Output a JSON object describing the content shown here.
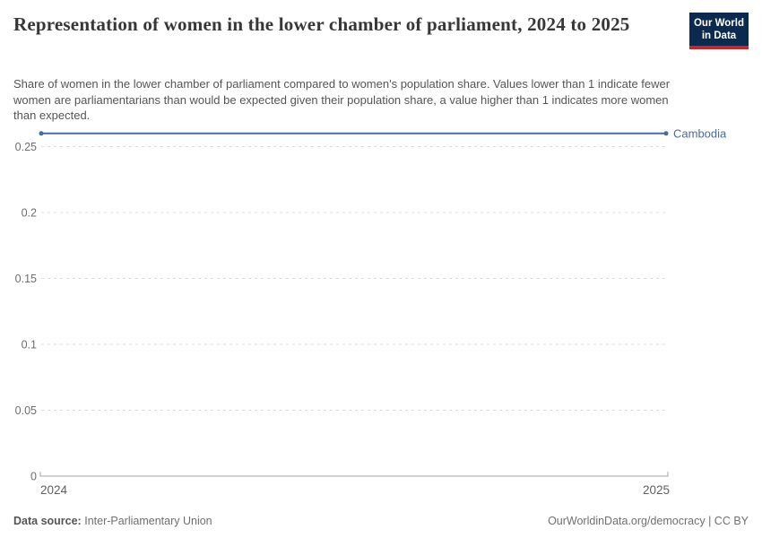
{
  "header": {
    "title": "Representation of women in the lower chamber of parliament, 2024 to 2025",
    "subtitle": "Share of women in the lower chamber of parliament compared to women's population share. Values lower than 1 indicate fewer women are parliamentarians than would be expected given their population share, a value higher than 1 indicates more women than expected."
  },
  "logo": {
    "line1": "Our World",
    "line2": "in Data",
    "bg_color": "#0c2a50",
    "accent_color": "#c1272d"
  },
  "chart_data": {
    "type": "line",
    "title": "Representation of women in the lower chamber of parliament, 2024 to 2025",
    "xlim": [
      2024,
      2025
    ],
    "x_tick_labels": [
      "2024",
      "2025"
    ],
    "y_ticks": [
      0,
      0.05,
      0.1,
      0.15,
      0.2,
      0.25
    ],
    "y_tick_labels": [
      "0",
      "0.05",
      "0.1",
      "0.15",
      "0.2",
      "0.25"
    ],
    "ylim": [
      0,
      0.26
    ],
    "grid": "horizontal-dashed",
    "legend_position": "right-of-line-end",
    "series": [
      {
        "name": "Cambodia",
        "x": [
          2024,
          2025
        ],
        "values": [
          0.26,
          0.26
        ],
        "color": "#4C6A9C"
      }
    ]
  },
  "footer": {
    "source_label": "Data source:",
    "source_value": "Inter-Parliamentary Union",
    "attribution": "OurWorldinData.org/democracy | CC BY"
  },
  "colors": {
    "grid": "#dcdcdc",
    "axis": "#a6a6a6",
    "title": "#383636",
    "subtitle": "#555555",
    "tick_label": "#6e6e6e"
  }
}
